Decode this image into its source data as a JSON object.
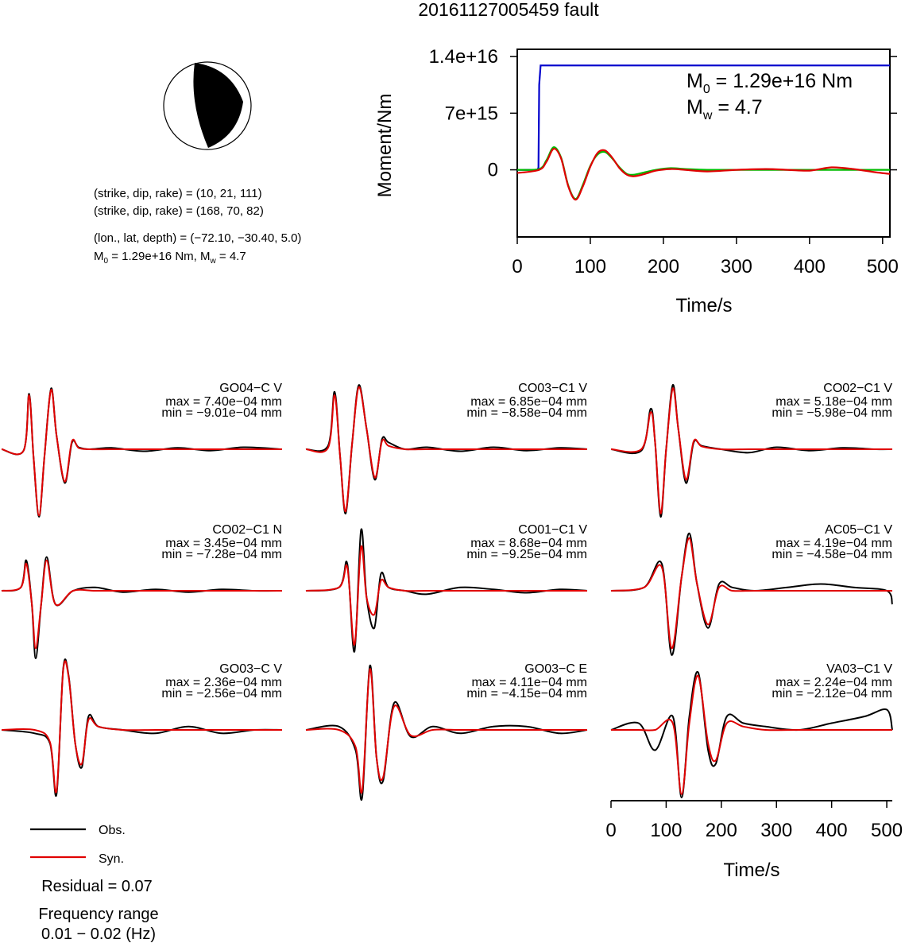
{
  "title": "20161127005459 fault",
  "mechanism": {
    "line1": "(strike, dip, rake) = (10, 21, 111)",
    "line2": "(strike, dip, rake) = (168, 70, 82)",
    "line3": "(lon., lat, depth) = (−72.10, −30.40, 5.0)",
    "line4_m0": "1.29e+16 Nm",
    "line4_mw": "4.7"
  },
  "moment_summary": {
    "m0_value": "1.29e+16 Nm",
    "mw_value": "4.7"
  },
  "legend": {
    "obs_label": "Obs.",
    "syn_label": "Syn.",
    "obs_color": "#000000",
    "syn_color": "#e00000"
  },
  "residual": "Residual = 0.07",
  "frequency": {
    "label": "Frequency range",
    "range": "0.01 − 0.02 (Hz)"
  },
  "chart_data": [
    {
      "type": "line",
      "id": "moment-rate",
      "xlabel": "Time/s",
      "ylabel": "Moment/Nm",
      "xlim": [
        0,
        510
      ],
      "ylim": [
        -8300000000000000.0,
        1.49e+16
      ],
      "x_ticks": [
        0,
        100,
        200,
        300,
        400,
        500
      ],
      "x_tick_labels": [
        "0",
        "100",
        "200",
        "300",
        "400",
        "500"
      ],
      "y_ticks": [
        0,
        7000000000000000.0,
        1.4e+16
      ],
      "y_tick_labels": [
        "0",
        "7e+15",
        "1.4e+16"
      ],
      "series": [
        {
          "color": "#0000cc",
          "x": [
            0,
            28,
            29,
            30,
            32,
            510
          ],
          "y": [
            0,
            0,
            300000000000000.0,
            1.05e+16,
            1.29e+16,
            1.29e+16
          ]
        },
        {
          "color": "#00bb00",
          "x": [
            0,
            30,
            40,
            50,
            60,
            70,
            80,
            90,
            100,
            110,
            120,
            130,
            140,
            150,
            160,
            175,
            190,
            210,
            230,
            260,
            300,
            340,
            380,
            420,
            460,
            510
          ],
          "y": [
            0,
            100000000000000.0,
            1200000000000000.0,
            2800000000000000.0,
            1500000000000000.0,
            -2000000000000000.0,
            -3600000000000000.0,
            -1800000000000000.0,
            500000000000000.0,
            1900000000000000.0,
            2200000000000000.0,
            1400000000000000.0,
            300000000000000.0,
            -500000000000000.0,
            -600000000000000.0,
            -300000000000000.0,
            0.0,
            200000000000000.0,
            100000000000000.0,
            0.0,
            0.0,
            0.0,
            0.0,
            0.0,
            0.0,
            0.0
          ]
        },
        {
          "color": "#e00000",
          "x": [
            0,
            30,
            40,
            50,
            60,
            70,
            80,
            90,
            100,
            110,
            120,
            130,
            140,
            150,
            160,
            175,
            190,
            210,
            230,
            260,
            300,
            340,
            370,
            400,
            430,
            460,
            490,
            510
          ],
          "y": [
            -400000000000000.0,
            0.0,
            1000000000000000.0,
            2600000000000000.0,
            1400000000000000.0,
            -2100000000000000.0,
            -3700000000000000.0,
            -2000000000000000.0,
            400000000000000.0,
            2100000000000000.0,
            2400000000000000.0,
            1500000000000000.0,
            200000000000000.0,
            -600000000000000.0,
            -800000000000000.0,
            -500000000000000.0,
            -100000000000000.0,
            100000000000000.0,
            0.0,
            -200000000000000.0,
            0.0,
            100000000000000.0,
            0.0,
            -100000000000000.0,
            300000000000000.0,
            100000000000000.0,
            -300000000000000.0,
            -500000000000000.0
          ]
        }
      ]
    },
    {
      "type": "line",
      "id": "waveforms",
      "xlabel": "Time/s",
      "xlim": [
        0,
        510
      ],
      "x_ticks": [
        0,
        100,
        200,
        300,
        400,
        500
      ],
      "x_tick_labels": [
        "0",
        "100",
        "200",
        "300",
        "400",
        "500"
      ],
      "panels": [
        {
          "station": "GO04−C V",
          "max": "max = 7.40e−04 mm",
          "min": "min = −9.01e−04 mm",
          "x": [
            0,
            40,
            50,
            58,
            68,
            78,
            90,
            100,
            115,
            128,
            140,
            160,
            200,
            260,
            320,
            380,
            440,
            510
          ],
          "obs": [
            0,
            -0.02,
            0.82,
            -0.1,
            -1.0,
            -0.1,
            0.9,
            0.2,
            -0.5,
            0.1,
            0.03,
            0.0,
            0.02,
            -0.03,
            0.02,
            -0.02,
            0.03,
            0.0
          ],
          "syn": [
            0,
            -0.02,
            0.8,
            -0.1,
            -0.98,
            -0.1,
            0.88,
            0.2,
            -0.48,
            0.12,
            0.02,
            0.0,
            0.0,
            0.0,
            0.0,
            0.0,
            0.0,
            0.0
          ]
        },
        {
          "station": "CO03−C1 V",
          "max": "max = 6.85e−04 mm",
          "min": "min = −8.58e−04 mm",
          "x": [
            0,
            40,
            52,
            62,
            72,
            84,
            96,
            110,
            125,
            138,
            150,
            180,
            220,
            280,
            340,
            400,
            460,
            510
          ],
          "obs": [
            0,
            0.05,
            0.85,
            -0.1,
            -0.95,
            0.1,
            0.95,
            0.3,
            -0.45,
            0.15,
            0.1,
            0.0,
            0.03,
            -0.03,
            0.03,
            -0.02,
            0.02,
            0.0
          ],
          "syn": [
            0,
            0.02,
            0.8,
            -0.1,
            -0.92,
            0.1,
            0.92,
            0.3,
            -0.42,
            0.12,
            0.05,
            0.0,
            0.0,
            0.0,
            0.0,
            0.0,
            0.0,
            0.0
          ]
        },
        {
          "station": "CO02−C1 V",
          "max": "max = 5.18e−04 mm",
          "min": "min = −5.98e−04 mm",
          "x": [
            0,
            55,
            72,
            80,
            90,
            100,
            112,
            122,
            136,
            150,
            165,
            200,
            250,
            300,
            360,
            420,
            480,
            510
          ],
          "obs": [
            0,
            -0.02,
            0.6,
            0.1,
            -1.0,
            0.0,
            0.95,
            0.3,
            -0.5,
            0.1,
            0.05,
            0.0,
            -0.05,
            0.03,
            -0.02,
            0.02,
            0.0,
            0.0
          ],
          "syn": [
            0,
            0.0,
            0.55,
            0.1,
            -0.95,
            0.0,
            0.9,
            0.3,
            -0.45,
            0.12,
            0.04,
            0.0,
            0.0,
            0.0,
            0.0,
            0.0,
            0.0,
            0.0
          ]
        },
        {
          "station": "CO02−C1 N",
          "max": "max = 3.45e−04 mm",
          "min": "min = −7.28e−04 mm",
          "x": [
            0,
            35,
            45,
            55,
            62,
            72,
            82,
            98,
            130,
            170,
            220,
            280,
            340,
            400,
            460,
            510
          ],
          "obs": [
            0,
            0.05,
            0.45,
            -0.2,
            -1.0,
            -0.2,
            0.5,
            -0.2,
            0.0,
            0.05,
            -0.02,
            0.02,
            -0.02,
            0.02,
            0.0,
            0.0
          ],
          "syn": [
            0,
            0.05,
            0.4,
            -0.2,
            -0.85,
            -0.2,
            0.45,
            -0.2,
            0.0,
            0.0,
            0.0,
            0.0,
            0.0,
            0.0,
            0.0,
            0.0
          ]
        },
        {
          "station": "CO01−C1 V",
          "max": "max = 8.68e−04 mm",
          "min": "min = −9.25e−04 mm",
          "x": [
            0,
            60,
            75,
            88,
            100,
            110,
            124,
            136,
            150,
            180,
            220,
            280,
            340,
            400,
            460,
            510
          ],
          "obs": [
            0,
            0.05,
            0.4,
            -0.9,
            0.9,
            -0.1,
            -0.55,
            0.25,
            0.05,
            0.0,
            -0.05,
            0.05,
            0.02,
            -0.03,
            0.02,
            0.0
          ],
          "syn": [
            0,
            0.05,
            0.35,
            -0.8,
            0.65,
            -0.1,
            -0.35,
            0.15,
            0.05,
            0.0,
            0.0,
            0.0,
            0.0,
            0.0,
            0.0,
            0.0
          ]
        },
        {
          "station": "AC05−C1 V",
          "max": "max = 4.19e−04 mm",
          "min": "min = −4.58e−04 mm",
          "x": [
            0,
            60,
            92,
            110,
            128,
            142,
            156,
            176,
            196,
            220,
            260,
            320,
            380,
            440,
            500,
            510
          ],
          "obs": [
            0,
            0.05,
            0.4,
            -0.95,
            0.2,
            0.85,
            0.1,
            -0.55,
            0.1,
            0.05,
            0.0,
            0.05,
            0.1,
            0.05,
            0.0,
            -0.2
          ],
          "syn": [
            0,
            0.05,
            0.35,
            -0.85,
            0.2,
            0.78,
            0.1,
            -0.5,
            0.05,
            0.0,
            0.0,
            0.0,
            0.0,
            0.0,
            0.0,
            0.0
          ]
        },
        {
          "station": "GO03−C V",
          "max": "max = 2.36e−04 mm",
          "min": "min = −2.56e−04 mm",
          "x": [
            0,
            60,
            88,
            100,
            112,
            122,
            134,
            146,
            158,
            176,
            220,
            280,
            340,
            400,
            460,
            510
          ],
          "obs": [
            0,
            -0.05,
            -0.2,
            -0.95,
            0.9,
            0.8,
            -0.2,
            -0.55,
            0.2,
            0.05,
            0.0,
            -0.05,
            0.05,
            -0.05,
            0.0,
            0.0
          ],
          "syn": [
            0,
            0.0,
            -0.18,
            -0.9,
            0.88,
            0.78,
            -0.2,
            -0.5,
            0.15,
            0.05,
            0.0,
            0.0,
            0.0,
            0.0,
            0.0,
            0.0
          ]
        },
        {
          "station": "GO03−C E",
          "max": "max = 4.11e−04 mm",
          "min": "min = −4.15e−04 mm",
          "x": [
            0,
            60,
            90,
            102,
            116,
            128,
            140,
            160,
            190,
            230,
            280,
            340,
            400,
            460,
            510
          ],
          "obs": [
            0,
            0.05,
            -0.3,
            -1.0,
            0.95,
            -0.4,
            -0.75,
            0.4,
            -0.1,
            0.05,
            -0.05,
            0.05,
            0.05,
            -0.05,
            0.0
          ],
          "syn": [
            0,
            0.0,
            -0.25,
            -0.9,
            0.9,
            -0.4,
            -0.7,
            0.35,
            -0.08,
            0.0,
            0.0,
            0.0,
            0.0,
            0.0,
            0.0
          ]
        },
        {
          "station": "VA03−C1 V",
          "max": "max = 2.24e−04 mm",
          "min": "min = −2.12e−04 mm",
          "x": [
            0,
            50,
            80,
            112,
            128,
            142,
            158,
            176,
            190,
            210,
            240,
            280,
            340,
            400,
            460,
            500,
            510
          ],
          "obs": [
            0,
            0.1,
            -0.3,
            0.2,
            -1.0,
            0.2,
            0.85,
            -0.3,
            -0.5,
            0.2,
            0.1,
            0.05,
            0.0,
            0.1,
            0.2,
            0.3,
            0.0
          ],
          "syn": [
            0,
            0.0,
            0.0,
            0.1,
            -0.95,
            0.1,
            0.8,
            -0.2,
            -0.45,
            0.1,
            0.05,
            0.0,
            0.0,
            0.0,
            0.0,
            0.0,
            0.0
          ]
        }
      ]
    }
  ]
}
